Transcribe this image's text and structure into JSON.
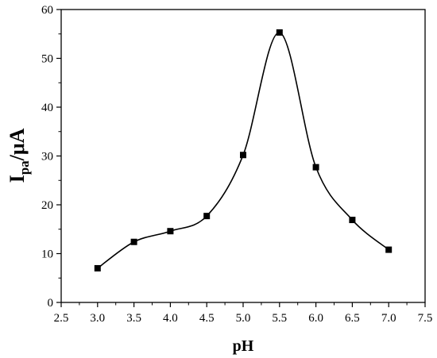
{
  "chart_data": {
    "type": "line",
    "xlabel": "pH",
    "ylabel_main": "I",
    "ylabel_sub": "pa",
    "ylabel_rest": "/μA",
    "xlim": [
      2.5,
      7.5
    ],
    "ylim": [
      0,
      60
    ],
    "xticks": [
      "2.5",
      "3.0",
      "3.5",
      "4.0",
      "4.5",
      "5.0",
      "5.5",
      "6.0",
      "6.5",
      "7.0",
      "7.5"
    ],
    "yticks": [
      "0",
      "10",
      "20",
      "30",
      "40",
      "50",
      "60"
    ],
    "grid": false,
    "legend": "none",
    "marker": "square",
    "series": [
      {
        "x": [
          3.0,
          3.5,
          4.0,
          4.5,
          5.0,
          5.5,
          6.0,
          6.5,
          7.0
        ],
        "y": [
          7.0,
          12.4,
          14.6,
          17.7,
          30.2,
          55.3,
          27.7,
          16.9,
          10.8
        ],
        "color": "#000000"
      }
    ]
  }
}
